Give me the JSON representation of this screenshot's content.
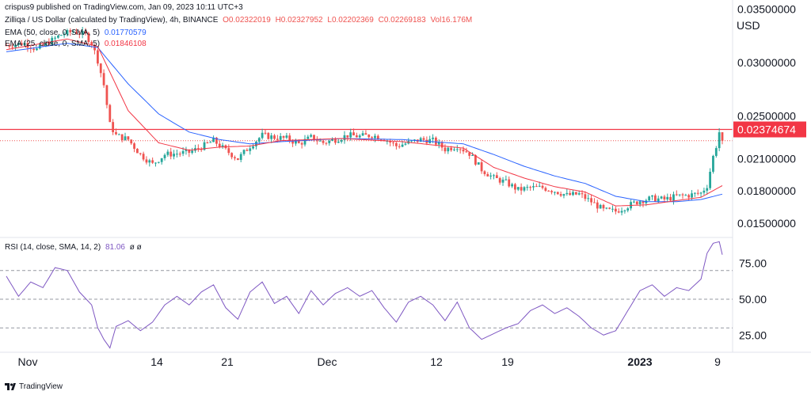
{
  "header": {
    "published": "crispus9 published on TradingView.com, Jan 09, 2023 10:11 UTC+3",
    "symbol": "Zilliqa / US Dollar (calculated by TradingView), 4h, BINANCE",
    "ohlc": {
      "o": "O0.02322019",
      "h": "H0.02327952",
      "l": "L0.02202369",
      "c": "C0.02269183",
      "vol": "Vol16.176M"
    },
    "ema50_label": "EMA (50, close, 0, SMA, 5)",
    "ema50_value": "0.01770579",
    "ema25_label": "EMA (25, close, 0, SMA, 5)",
    "ema25_value": "0.01846108",
    "rsi_label": "RSI (14, close, SMA, 14, 2)",
    "rsi_value": "81.06",
    "rsi_extra": "ø ø"
  },
  "footer": {
    "brand": "TradingView"
  },
  "colors": {
    "bull": "#26a69a",
    "bear": "#ef5350",
    "ema50": "#2962ff",
    "ema25": "#f23645",
    "rsi": "#7e57c2",
    "resistance": "#f23645",
    "text": "#131722",
    "grid_dash": "#9598a1"
  },
  "chart_data": [
    {
      "type": "candlestick",
      "title": "Zilliqa / US Dollar (calculated by TradingView), 4h, BINANCE",
      "ylabel": "USD",
      "ylim": [
        0.0138,
        0.0351
      ],
      "y_ticks": [
        "0.03500000",
        "0.03000000",
        "0.02500000",
        "0.02100000",
        "0.01800000",
        "0.01500000"
      ],
      "x_ticks": [
        "Nov",
        "14",
        "21",
        "Dec",
        "12",
        "19",
        "2023",
        "9"
      ],
      "current_price_label": "0.02374674",
      "resistance_level": 0.02374674,
      "last_close": 0.02269183,
      "price_path": [
        [
          0,
          0.0316
        ],
        [
          6,
          0.0318
        ],
        [
          10,
          0.0312
        ],
        [
          14,
          0.0319
        ],
        [
          18,
          0.0326
        ],
        [
          22,
          0.0329
        ],
        [
          26,
          0.0326
        ],
        [
          28,
          0.0318
        ],
        [
          30,
          0.0302
        ],
        [
          32,
          0.0279
        ],
        [
          34,
          0.0242
        ],
        [
          36,
          0.0232
        ],
        [
          40,
          0.0228
        ],
        [
          44,
          0.0214
        ],
        [
          48,
          0.0205
        ],
        [
          52,
          0.0214
        ],
        [
          56,
          0.0215
        ],
        [
          60,
          0.0216
        ],
        [
          64,
          0.0221
        ],
        [
          68,
          0.0227
        ],
        [
          72,
          0.0218
        ],
        [
          76,
          0.021
        ],
        [
          80,
          0.0222
        ],
        [
          84,
          0.0232
        ],
        [
          88,
          0.023
        ],
        [
          92,
          0.0229
        ],
        [
          96,
          0.0224
        ],
        [
          100,
          0.023
        ],
        [
          104,
          0.0225
        ],
        [
          108,
          0.0228
        ],
        [
          112,
          0.0232
        ],
        [
          116,
          0.0231
        ],
        [
          120,
          0.0232
        ],
        [
          124,
          0.0229
        ],
        [
          128,
          0.0222
        ],
        [
          132,
          0.0225
        ],
        [
          136,
          0.0228
        ],
        [
          140,
          0.0227
        ],
        [
          144,
          0.0219
        ],
        [
          148,
          0.0222
        ],
        [
          152,
          0.0215
        ],
        [
          156,
          0.02
        ],
        [
          160,
          0.0192
        ],
        [
          164,
          0.0188
        ],
        [
          168,
          0.0181
        ],
        [
          172,
          0.0183
        ],
        [
          176,
          0.0183
        ],
        [
          180,
          0.018
        ],
        [
          184,
          0.0176
        ],
        [
          188,
          0.0177
        ],
        [
          192,
          0.017
        ],
        [
          196,
          0.0162
        ],
        [
          200,
          0.0161
        ],
        [
          204,
          0.0166
        ],
        [
          208,
          0.0171
        ],
        [
          212,
          0.0173
        ],
        [
          216,
          0.0172
        ],
        [
          220,
          0.0175
        ],
        [
          224,
          0.0176
        ],
        [
          228,
          0.0178
        ],
        [
          230,
          0.0185
        ],
        [
          232,
          0.0212
        ],
        [
          233,
          0.0222
        ],
        [
          234,
          0.0235
        ],
        [
          235,
          0.0227
        ]
      ],
      "series": [
        {
          "name": "EMA (50, close, 0, SMA, 5)",
          "last_value": 0.01770579,
          "points": [
            [
              0,
              0.031
            ],
            [
              20,
              0.0318
            ],
            [
              30,
              0.0314
            ],
            [
              40,
              0.028
            ],
            [
              50,
              0.0252
            ],
            [
              60,
              0.0235
            ],
            [
              70,
              0.0228
            ],
            [
              80,
              0.0224
            ],
            [
              90,
              0.0226
            ],
            [
              110,
              0.0229
            ],
            [
              130,
              0.0228
            ],
            [
              150,
              0.0224
            ],
            [
              160,
              0.0214
            ],
            [
              170,
              0.0203
            ],
            [
              180,
              0.0194
            ],
            [
              190,
              0.0187
            ],
            [
              200,
              0.0175
            ],
            [
              210,
              0.017
            ],
            [
              220,
              0.017
            ],
            [
              228,
              0.0172
            ],
            [
              235,
              0.0177
            ]
          ]
        },
        {
          "name": "EMA (25, close, 0, SMA, 5)",
          "last_value": 0.01846108,
          "points": [
            [
              0,
              0.0312
            ],
            [
              20,
              0.0322
            ],
            [
              30,
              0.0315
            ],
            [
              40,
              0.0255
            ],
            [
              50,
              0.0225
            ],
            [
              60,
              0.0218
            ],
            [
              70,
              0.0221
            ],
            [
              80,
              0.0222
            ],
            [
              90,
              0.0227
            ],
            [
              110,
              0.0229
            ],
            [
              130,
              0.0226
            ],
            [
              150,
              0.022
            ],
            [
              160,
              0.0202
            ],
            [
              170,
              0.0192
            ],
            [
              180,
              0.0184
            ],
            [
              190,
              0.0179
            ],
            [
              200,
              0.0166
            ],
            [
              210,
              0.0167
            ],
            [
              220,
              0.0171
            ],
            [
              228,
              0.0174
            ],
            [
              235,
              0.0185
            ]
          ]
        }
      ]
    },
    {
      "type": "line",
      "title": "RSI (14, close, SMA, 14, 2)",
      "ylim": [
        13,
        93
      ],
      "y_ticks": [
        "75.00",
        "50.00",
        "25.00"
      ],
      "levels": [
        70,
        50,
        30
      ],
      "last_value": 81.06,
      "series": [
        {
          "name": "RSI (14, close, SMA, 14, 2)",
          "points": [
            [
              0,
              66
            ],
            [
              4,
              52
            ],
            [
              8,
              62
            ],
            [
              12,
              58
            ],
            [
              16,
              72
            ],
            [
              20,
              70
            ],
            [
              24,
              55
            ],
            [
              28,
              46
            ],
            [
              30,
              30
            ],
            [
              32,
              22
            ],
            [
              34,
              16
            ],
            [
              36,
              31
            ],
            [
              40,
              35
            ],
            [
              44,
              28
            ],
            [
              48,
              34
            ],
            [
              52,
              46
            ],
            [
              56,
              52
            ],
            [
              60,
              46
            ],
            [
              64,
              55
            ],
            [
              68,
              60
            ],
            [
              72,
              44
            ],
            [
              76,
              36
            ],
            [
              80,
              55
            ],
            [
              84,
              62
            ],
            [
              88,
              47
            ],
            [
              92,
              52
            ],
            [
              96,
              40
            ],
            [
              100,
              56
            ],
            [
              104,
              46
            ],
            [
              108,
              54
            ],
            [
              112,
              58
            ],
            [
              116,
              52
            ],
            [
              120,
              56
            ],
            [
              124,
              44
            ],
            [
              128,
              34
            ],
            [
              132,
              48
            ],
            [
              136,
              52
            ],
            [
              140,
              46
            ],
            [
              144,
              35
            ],
            [
              148,
              48
            ],
            [
              152,
              30
            ],
            [
              156,
              22
            ],
            [
              160,
              26
            ],
            [
              164,
              30
            ],
            [
              168,
              33
            ],
            [
              172,
              42
            ],
            [
              176,
              46
            ],
            [
              180,
              40
            ],
            [
              184,
              44
            ],
            [
              188,
              38
            ],
            [
              192,
              30
            ],
            [
              196,
              25
            ],
            [
              200,
              28
            ],
            [
              204,
              42
            ],
            [
              208,
              56
            ],
            [
              212,
              60
            ],
            [
              216,
              52
            ],
            [
              220,
              58
            ],
            [
              224,
              56
            ],
            [
              228,
              64
            ],
            [
              230,
              82
            ],
            [
              232,
              89
            ],
            [
              234,
              90
            ],
            [
              235,
              81
            ]
          ]
        }
      ]
    }
  ]
}
